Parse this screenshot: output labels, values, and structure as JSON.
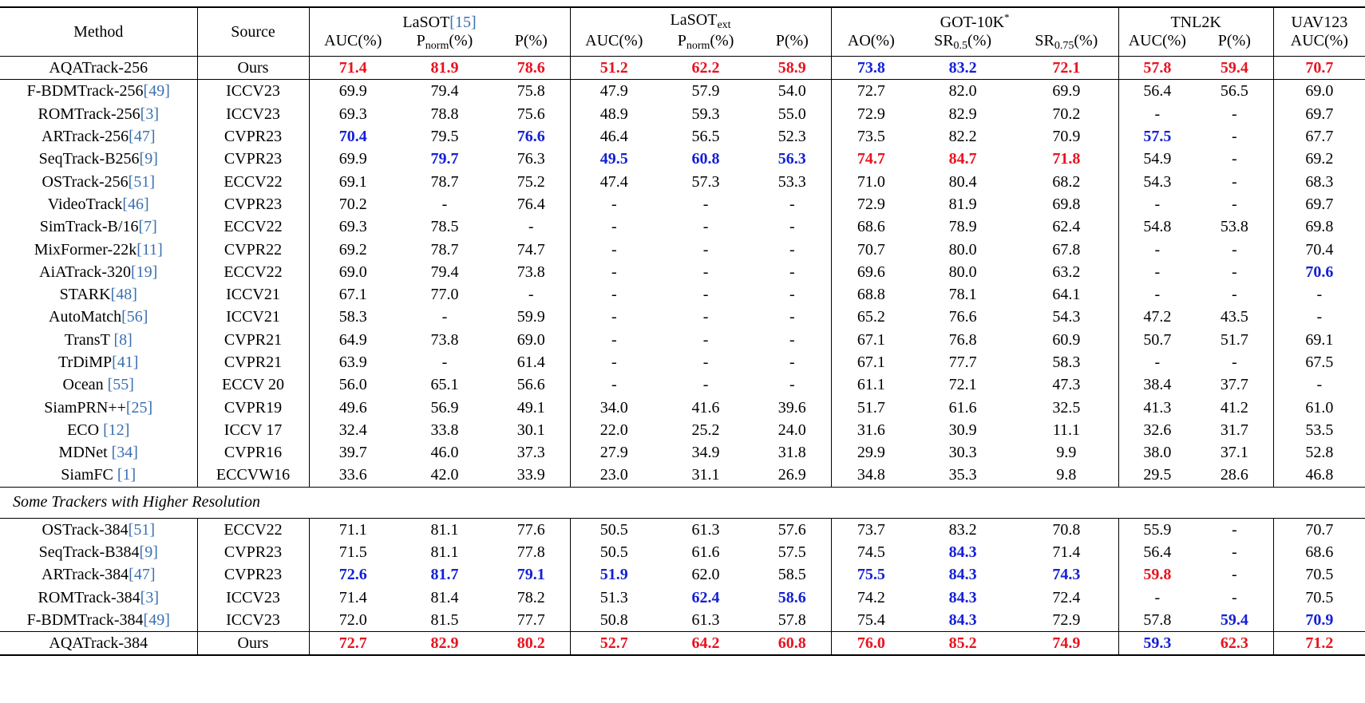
{
  "header": {
    "method": "Method",
    "source": "Source",
    "groups": [
      {
        "name": "LaSOT",
        "cite": "[15]",
        "sub": "",
        "sup": ""
      },
      {
        "name": "LaSOT",
        "cite": "",
        "sub": "ext",
        "sup": ""
      },
      {
        "name": "GOT-10K",
        "cite": "",
        "sub": "",
        "sup": "*"
      },
      {
        "name": "TNL2K",
        "cite": "",
        "sub": "",
        "sup": ""
      },
      {
        "name": "UAV123",
        "cite": "",
        "sub": "",
        "sup": ""
      }
    ],
    "metrics": [
      {
        "pre": "AUC(%)",
        "sub": "",
        "post": ""
      },
      {
        "pre": "P",
        "sub": "norm",
        "post": "(%)"
      },
      {
        "pre": "P(%)",
        "sub": "",
        "post": ""
      },
      {
        "pre": "AUC(%)",
        "sub": "",
        "post": ""
      },
      {
        "pre": "P",
        "sub": "norm",
        "post": "(%)"
      },
      {
        "pre": "P(%)",
        "sub": "",
        "post": ""
      },
      {
        "pre": "AO(%)",
        "sub": "",
        "post": ""
      },
      {
        "pre": "SR",
        "sub": "0.5",
        "post": "(%)"
      },
      {
        "pre": "SR",
        "sub": "0.75",
        "post": "(%)"
      },
      {
        "pre": "AUC(%)",
        "sub": "",
        "post": ""
      },
      {
        "pre": "P(%)",
        "sub": "",
        "post": ""
      },
      {
        "pre": "AUC(%)",
        "sub": "",
        "post": ""
      }
    ]
  },
  "ours_256": {
    "method": "AQATrack-256",
    "cite": "",
    "source": "Ours",
    "values": [
      "71.4",
      "81.9",
      "78.6",
      "51.2",
      "62.2",
      "58.9",
      "73.8",
      "83.2",
      "72.1",
      "57.8",
      "59.4",
      "70.7"
    ],
    "styles": [
      "r",
      "r",
      "r",
      "r",
      "r",
      "r",
      "b",
      "b",
      "r",
      "r",
      "r",
      "r"
    ]
  },
  "rows": [
    {
      "method": "F-BDMTrack-256",
      "cite": "[49]",
      "source": "ICCV23",
      "values": [
        "69.9",
        "79.4",
        "75.8",
        "47.9",
        "57.9",
        "54.0",
        "72.7",
        "82.0",
        "69.9",
        "56.4",
        "56.5",
        "69.0"
      ],
      "styles": [
        "",
        "",
        "",
        "",
        "",
        "",
        "",
        "",
        "",
        "",
        "",
        ""
      ]
    },
    {
      "method": "ROMTrack-256",
      "cite": "[3]",
      "source": "ICCV23",
      "values": [
        "69.3",
        "78.8",
        "75.6",
        "48.9",
        "59.3",
        "55.0",
        "72.9",
        "82.9",
        "70.2",
        "-",
        "-",
        "69.7"
      ],
      "styles": [
        "",
        "",
        "",
        "",
        "",
        "",
        "",
        "",
        "",
        "",
        "",
        ""
      ]
    },
    {
      "method": "ARTrack-256",
      "cite": "[47]",
      "source": "CVPR23",
      "values": [
        "70.4",
        "79.5",
        "76.6",
        "46.4",
        "56.5",
        "52.3",
        "73.5",
        "82.2",
        "70.9",
        "57.5",
        "-",
        "67.7"
      ],
      "styles": [
        "b",
        "",
        "b",
        "",
        "",
        "",
        "",
        "",
        "",
        "b",
        "",
        ""
      ]
    },
    {
      "method": "SeqTrack-B256",
      "cite": "[9]",
      "source": "CVPR23",
      "values": [
        "69.9",
        "79.7",
        "76.3",
        "49.5",
        "60.8",
        "56.3",
        "74.7",
        "84.7",
        "71.8",
        "54.9",
        "-",
        "69.2"
      ],
      "styles": [
        "",
        "b",
        "",
        "b",
        "b",
        "b",
        "r",
        "r",
        "r",
        "",
        "",
        ""
      ]
    },
    {
      "method": "OSTrack-256",
      "cite": "[51]",
      "source": "ECCV22",
      "values": [
        "69.1",
        "78.7",
        "75.2",
        "47.4",
        "57.3",
        "53.3",
        "71.0",
        "80.4",
        "68.2",
        "54.3",
        "-",
        "68.3"
      ],
      "styles": [
        "",
        "",
        "",
        "",
        "",
        "",
        "",
        "",
        "",
        "",
        "",
        ""
      ]
    },
    {
      "method": "VideoTrack",
      "cite": "[46]",
      "source": "CVPR23",
      "values": [
        "70.2",
        "-",
        "76.4",
        "-",
        "-",
        "-",
        "72.9",
        "81.9",
        "69.8",
        "-",
        "-",
        "69.7"
      ],
      "styles": [
        "",
        "",
        "",
        "",
        "",
        "",
        "",
        "",
        "",
        "",
        "",
        ""
      ]
    },
    {
      "method": "SimTrack-B/16",
      "cite": "[7]",
      "source": "ECCV22",
      "values": [
        "69.3",
        "78.5",
        "-",
        "-",
        "-",
        "-",
        "68.6",
        "78.9",
        "62.4",
        "54.8",
        "53.8",
        "69.8"
      ],
      "styles": [
        "",
        "",
        "",
        "",
        "",
        "",
        "",
        "",
        "",
        "",
        "",
        ""
      ]
    },
    {
      "method": "MixFormer-22k",
      "cite": "[11]",
      "source": "CVPR22",
      "values": [
        "69.2",
        "78.7",
        "74.7",
        "-",
        "-",
        "-",
        "70.7",
        "80.0",
        "67.8",
        "-",
        "-",
        "70.4"
      ],
      "styles": [
        "",
        "",
        "",
        "",
        "",
        "",
        "",
        "",
        "",
        "",
        "",
        ""
      ]
    },
    {
      "method": "AiATrack-320",
      "cite": "[19]",
      "source": "ECCV22",
      "values": [
        "69.0",
        "79.4",
        "73.8",
        "-",
        "-",
        "-",
        "69.6",
        "80.0",
        "63.2",
        "-",
        "-",
        "70.6"
      ],
      "styles": [
        "",
        "",
        "",
        "",
        "",
        "",
        "",
        "",
        "",
        "",
        "",
        "b"
      ]
    },
    {
      "method": "STARK",
      "cite": "[48]",
      "source": "ICCV21",
      "values": [
        "67.1",
        "77.0",
        "-",
        "-",
        "-",
        "-",
        "68.8",
        "78.1",
        "64.1",
        "-",
        "-",
        "-"
      ],
      "styles": [
        "",
        "",
        "",
        "",
        "",
        "",
        "",
        "",
        "",
        "",
        "",
        ""
      ]
    },
    {
      "method": "AutoMatch",
      "cite": "[56]",
      "source": "ICCV21",
      "values": [
        "58.3",
        "-",
        "59.9",
        "-",
        "-",
        "-",
        "65.2",
        "76.6",
        "54.3",
        "47.2",
        "43.5",
        "-"
      ],
      "styles": [
        "",
        "",
        "",
        "",
        "",
        "",
        "",
        "",
        "",
        "",
        "",
        ""
      ]
    },
    {
      "method": "TransT ",
      "cite": "[8]",
      "source": "CVPR21",
      "values": [
        "64.9",
        "73.8",
        "69.0",
        "-",
        "-",
        "-",
        "67.1",
        "76.8",
        "60.9",
        "50.7",
        "51.7",
        "69.1"
      ],
      "styles": [
        "",
        "",
        "",
        "",
        "",
        "",
        "",
        "",
        "",
        "",
        "",
        ""
      ]
    },
    {
      "method": "TrDiMP",
      "cite": "[41]",
      "source": "CVPR21",
      "values": [
        "63.9",
        "-",
        "61.4",
        "-",
        "-",
        "-",
        "67.1",
        "77.7",
        "58.3",
        "-",
        "-",
        "67.5"
      ],
      "styles": [
        "",
        "",
        "",
        "",
        "",
        "",
        "",
        "",
        "",
        "",
        "",
        ""
      ]
    },
    {
      "method": "Ocean ",
      "cite": "[55]",
      "source": "ECCV 20",
      "values": [
        "56.0",
        "65.1",
        "56.6",
        "-",
        "-",
        "-",
        "61.1",
        "72.1",
        "47.3",
        "38.4",
        "37.7",
        "-"
      ],
      "styles": [
        "",
        "",
        "",
        "",
        "",
        "",
        "",
        "",
        "",
        "",
        "",
        ""
      ]
    },
    {
      "method": "SiamPRN++",
      "cite": "[25]",
      "source": "CVPR19",
      "values": [
        "49.6",
        "56.9",
        "49.1",
        "34.0",
        "41.6",
        "39.6",
        "51.7",
        "61.6",
        "32.5",
        "41.3",
        "41.2",
        "61.0"
      ],
      "styles": [
        "",
        "",
        "",
        "",
        "",
        "",
        "",
        "",
        "",
        "",
        "",
        ""
      ]
    },
    {
      "method": "ECO ",
      "cite": "[12]",
      "source": "ICCV 17",
      "values": [
        "32.4",
        "33.8",
        "30.1",
        "22.0",
        "25.2",
        "24.0",
        "31.6",
        "30.9",
        "11.1",
        "32.6",
        "31.7",
        "53.5"
      ],
      "styles": [
        "",
        "",
        "",
        "",
        "",
        "",
        "",
        "",
        "",
        "",
        "",
        ""
      ]
    },
    {
      "method": "MDNet ",
      "cite": "[34]",
      "source": "CVPR16",
      "values": [
        "39.7",
        "46.0",
        "37.3",
        "27.9",
        "34.9",
        "31.8",
        "29.9",
        "30.3",
        "9.9",
        "38.0",
        "37.1",
        "52.8"
      ],
      "styles": [
        "",
        "",
        "",
        "",
        "",
        "",
        "",
        "",
        "",
        "",
        "",
        ""
      ]
    },
    {
      "method": "SiamFC ",
      "cite": "[1]",
      "source": "ECCVW16",
      "values": [
        "33.6",
        "42.0",
        "33.9",
        "23.0",
        "31.1",
        "26.9",
        "34.8",
        "35.3",
        "9.8",
        "29.5",
        "28.6",
        "46.8"
      ],
      "styles": [
        "",
        "",
        "",
        "",
        "",
        "",
        "",
        "",
        "",
        "",
        "",
        ""
      ]
    }
  ],
  "section_label": "Some Trackers with Higher Resolution",
  "hr_rows": [
    {
      "method": "OSTrack-384",
      "cite": "[51]",
      "source": "ECCV22",
      "values": [
        "71.1",
        "81.1",
        "77.6",
        "50.5",
        "61.3",
        "57.6",
        "73.7",
        "83.2",
        "70.8",
        "55.9",
        "-",
        "70.7"
      ],
      "styles": [
        "",
        "",
        "",
        "",
        "",
        "",
        "",
        "",
        "",
        "",
        "",
        ""
      ]
    },
    {
      "method": "SeqTrack-B384",
      "cite": "[9]",
      "source": "CVPR23",
      "values": [
        "71.5",
        "81.1",
        "77.8",
        "50.5",
        "61.6",
        "57.5",
        "74.5",
        "84.3",
        "71.4",
        "56.4",
        "-",
        "68.6"
      ],
      "styles": [
        "",
        "",
        "",
        "",
        "",
        "",
        "",
        "b",
        "",
        "",
        "",
        ""
      ]
    },
    {
      "method": "ARTrack-384",
      "cite": "[47]",
      "source": "CVPR23",
      "values": [
        "72.6",
        "81.7",
        "79.1",
        "51.9",
        "62.0",
        "58.5",
        "75.5",
        "84.3",
        "74.3",
        "59.8",
        "-",
        "70.5"
      ],
      "styles": [
        "b",
        "b",
        "b",
        "b",
        "",
        "",
        "b",
        "b",
        "b",
        "r",
        "",
        ""
      ]
    },
    {
      "method": "ROMTrack-384",
      "cite": "[3]",
      "source": "ICCV23",
      "values": [
        "71.4",
        "81.4",
        "78.2",
        "51.3",
        "62.4",
        "58.6",
        "74.2",
        "84.3",
        "72.4",
        "-",
        "-",
        "70.5"
      ],
      "styles": [
        "",
        "",
        "",
        "",
        "b",
        "b",
        "",
        "b",
        "",
        "",
        "",
        ""
      ]
    },
    {
      "method": "F-BDMTrack-384",
      "cite": "[49]",
      "source": "ICCV23",
      "values": [
        "72.0",
        "81.5",
        "77.7",
        "50.8",
        "61.3",
        "57.8",
        "75.4",
        "84.3",
        "72.9",
        "57.8",
        "59.4",
        "70.9"
      ],
      "styles": [
        "",
        "",
        "",
        "",
        "",
        "",
        "",
        "b",
        "",
        "",
        "b",
        "b"
      ]
    }
  ],
  "ours_384": {
    "method": "AQATrack-384",
    "cite": "",
    "source": "Ours",
    "values": [
      "72.7",
      "82.9",
      "80.2",
      "52.7",
      "64.2",
      "60.8",
      "76.0",
      "85.2",
      "74.9",
      "59.3",
      "62.3",
      "71.2"
    ],
    "styles": [
      "r",
      "r",
      "r",
      "r",
      "r",
      "r",
      "r",
      "r",
      "r",
      "b",
      "r",
      "r"
    ]
  },
  "colors": {
    "best": "#e8131f",
    "second": "#1420d6",
    "cite": "#3a6fb0"
  }
}
